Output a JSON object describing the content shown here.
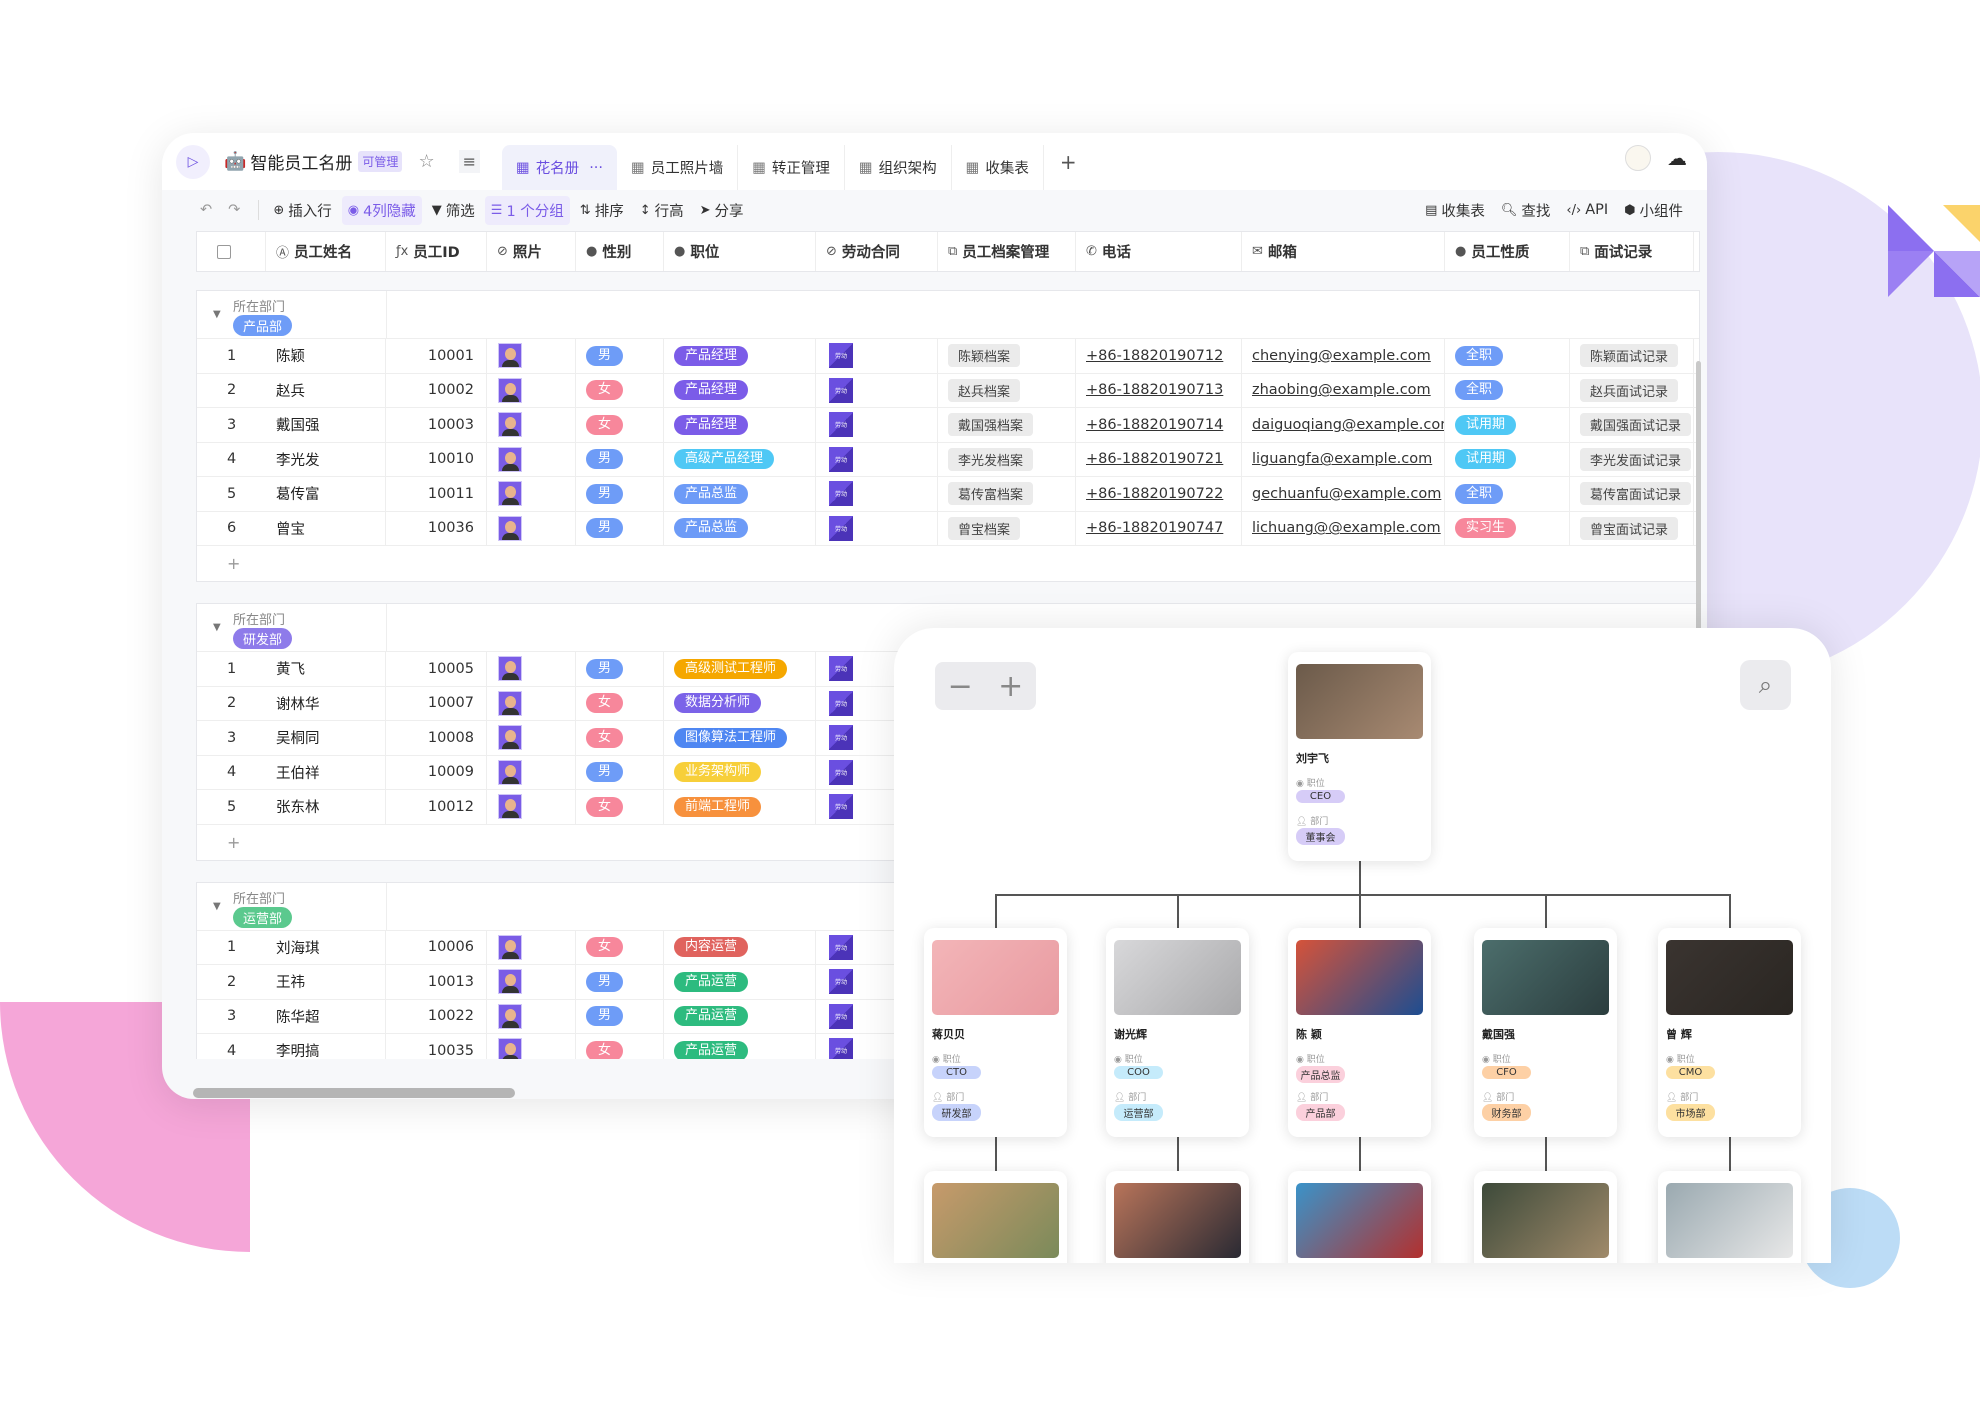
{
  "app": {
    "title": "智能员工名册",
    "permission_badge": "可管理",
    "logo_icon": "sidebar-toggle-icon"
  },
  "tabs": [
    {
      "label": "花名册",
      "active": true,
      "icon": "grid-icon",
      "more": "···"
    },
    {
      "label": "员工照片墙",
      "icon": "gallery-icon"
    },
    {
      "label": "转正管理",
      "icon": "kanban-icon"
    },
    {
      "label": "组织架构",
      "icon": "org-icon"
    },
    {
      "label": "收集表",
      "icon": "form-icon"
    }
  ],
  "add_tab": "+",
  "toolbar": {
    "insert_row": "插入行",
    "hidden_cols": "4列隐藏",
    "filter": "筛选",
    "group": "1 个分组",
    "sort": "排序",
    "row_height": "行高",
    "share": "分享",
    "form": "收集表",
    "find": "查找",
    "api": "API",
    "widget": "小组件"
  },
  "columns": [
    "员工姓名",
    "员工ID",
    "照片",
    "性别",
    "职位",
    "劳动合同",
    "员工档案管理",
    "电话",
    "邮箱",
    "员工性质",
    "面试记录"
  ],
  "group_field": "所在部门",
  "colors": {
    "男": "#6e9cf7",
    "女": "#f7879b",
    "全职": "#6e9cf7",
    "试用期": "#4fc8f5",
    "实习生": "#f7879b",
    "产品经理": "#7b5ce8",
    "高级产品经理": "#4fc8f5",
    "产品总监": "#6d9bf7",
    "高级测试工程师": "#f5a700",
    "数据分析师": "#7b63e8",
    "图像算法工程师": "#4f87f2",
    "业务架构师": "#f7cf3a",
    "前端工程师": "#f7913d",
    "内容运营": "#e0635e",
    "产品运营": "#2dbb7f"
  },
  "groups": [
    {
      "name": "产品部",
      "color": "#6e9cf7",
      "rows": [
        {
          "n": "1",
          "name": "陈颖",
          "id": "10001",
          "gender": "男",
          "position": "产品经理",
          "archive": "陈颖档案",
          "phone": "+86-18820190712",
          "email": "chenying@example.com",
          "type": "全职",
          "interview": "陈颖面试记录"
        },
        {
          "n": "2",
          "name": "赵兵",
          "id": "10002",
          "gender": "女",
          "position": "产品经理",
          "archive": "赵兵档案",
          "phone": "+86-18820190713",
          "email": "zhaobing@example.com",
          "type": "全职",
          "interview": "赵兵面试记录"
        },
        {
          "n": "3",
          "name": "戴国强",
          "id": "10003",
          "gender": "女",
          "position": "产品经理",
          "archive": "戴国强档案",
          "phone": "+86-18820190714",
          "email": "daiguoqiang@example.com",
          "type": "试用期",
          "interview": "戴国强面试记录"
        },
        {
          "n": "4",
          "name": "李光发",
          "id": "10010",
          "gender": "男",
          "position": "高级产品经理",
          "archive": "李光发档案",
          "phone": "+86-18820190721",
          "email": "liguangfa@example.com",
          "type": "试用期",
          "interview": "李光发面试记录"
        },
        {
          "n": "5",
          "name": "葛传富",
          "id": "10011",
          "gender": "男",
          "position": "产品总监",
          "archive": "葛传富档案",
          "phone": "+86-18820190722",
          "email": "gechuanfu@example.com",
          "type": "全职",
          "interview": "葛传富面试记录"
        },
        {
          "n": "6",
          "name": "曾宝",
          "id": "10036",
          "gender": "男",
          "position": "产品总监",
          "archive": "曾宝档案",
          "phone": "+86-18820190747",
          "email": "lichuang@@example.com",
          "type": "实习生",
          "interview": "曾宝面试记录"
        }
      ]
    },
    {
      "name": "研发部",
      "color": "#8e7bea",
      "rows": [
        {
          "n": "1",
          "name": "黄飞",
          "id": "10005",
          "gender": "男",
          "position": "高级测试工程师"
        },
        {
          "n": "2",
          "name": "谢林华",
          "id": "10007",
          "gender": "女",
          "position": "数据分析师"
        },
        {
          "n": "3",
          "name": "吴桐同",
          "id": "10008",
          "gender": "女",
          "position": "图像算法工程师"
        },
        {
          "n": "4",
          "name": "王伯祥",
          "id": "10009",
          "gender": "男",
          "position": "业务架构师"
        },
        {
          "n": "5",
          "name": "张东林",
          "id": "10012",
          "gender": "女",
          "position": "前端工程师"
        }
      ]
    },
    {
      "name": "运营部",
      "color": "#5bc98e",
      "rows": [
        {
          "n": "1",
          "name": "刘海琪",
          "id": "10006",
          "gender": "女",
          "position": "内容运营"
        },
        {
          "n": "2",
          "name": "王祎",
          "id": "10013",
          "gender": "男",
          "position": "产品运营"
        },
        {
          "n": "3",
          "name": "陈华超",
          "id": "10022",
          "gender": "男",
          "position": "产品运营"
        },
        {
          "n": "4",
          "name": "李明搞",
          "id": "10035",
          "gender": "女",
          "position": "产品运营"
        }
      ]
    }
  ],
  "add_row": "+",
  "org": {
    "zoom_out": "−",
    "zoom_in": "+",
    "label_position": "职位",
    "label_dept": "部门",
    "root": {
      "name": "刘宇飞",
      "position": "CEO",
      "dept": "董事会",
      "tag_color": "#d6ccf7",
      "photo": [
        "#6b5a4a",
        "#a88a72"
      ]
    },
    "level2": [
      {
        "name": "蒋贝贝",
        "position": "CTO",
        "dept": "研发部",
        "tag_color": "#c7d3fb",
        "photo": [
          "#f3b5b8",
          "#e89aa0"
        ]
      },
      {
        "name": "谢光辉",
        "position": "COO",
        "dept": "运营部",
        "tag_color": "#c5ebfb",
        "photo": [
          "#d8d8da",
          "#a9a9ab"
        ]
      },
      {
        "name": "陈 颖",
        "position": "产品总监",
        "dept": "产品部",
        "tag_color": "#fbd0dc",
        "photo": [
          "#d5533a",
          "#1d4d91"
        ]
      },
      {
        "name": "戴国强",
        "position": "CFO",
        "dept": "财务部",
        "tag_color": "#fdd0a5",
        "photo": [
          "#4c6e6c",
          "#2b3d3e"
        ]
      },
      {
        "name": "曾 辉",
        "position": "CMO",
        "dept": "市场部",
        "tag_color": "#fde0a0",
        "photo": [
          "#3a3430",
          "#2a2622"
        ]
      }
    ],
    "level3_photos": [
      [
        "#c79a6b",
        "#7a8a5a"
      ],
      [
        "#b8745a",
        "#2a2a33"
      ],
      [
        "#3a93c9",
        "#b3302e"
      ],
      [
        "#3d4a3a",
        "#a08a6a"
      ],
      [
        "#9aa9b0",
        "#e8e8e8"
      ]
    ]
  }
}
